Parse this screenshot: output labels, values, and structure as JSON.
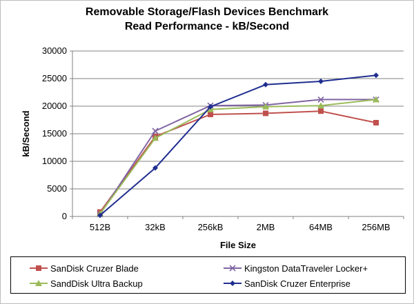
{
  "chart_data": {
    "type": "line",
    "title": "Removable Storage/Flash Devices Benchmark",
    "subtitle": "Read Performance - kB/Second",
    "xlabel": "File Size",
    "ylabel": "kB/Second",
    "categories": [
      "512B",
      "32kB",
      "256kB",
      "2MB",
      "64MB",
      "256MB"
    ],
    "ylim": [
      0,
      30000
    ],
    "yticks": [
      0,
      5000,
      10000,
      15000,
      20000,
      25000,
      30000
    ],
    "grid": true,
    "legend_position": "bottom",
    "series": [
      {
        "name": "SanDisk Cruzer Blade",
        "values": [
          800,
          14500,
          18500,
          18700,
          19100,
          17000
        ],
        "color": "#c0504d",
        "marker": "square"
      },
      {
        "name": "Kingston DataTraveler Locker+",
        "values": [
          400,
          15500,
          20100,
          20200,
          21200,
          21200
        ],
        "color": "#8064a2",
        "marker": "x"
      },
      {
        "name": "SandDisk Ultra Backup",
        "values": [
          500,
          14200,
          19400,
          19900,
          20100,
          21200
        ],
        "color": "#9bbb59",
        "marker": "triangle"
      },
      {
        "name": "SanDisk Cruzer Enterprise",
        "values": [
          200,
          8800,
          19900,
          23900,
          24500,
          25600
        ],
        "color": "#1f2e8f",
        "marker": "diamond"
      }
    ]
  }
}
